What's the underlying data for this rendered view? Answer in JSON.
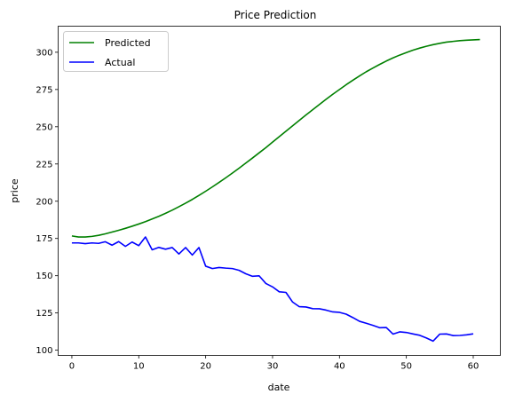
{
  "chart_data": {
    "type": "line",
    "title": "Price Prediction",
    "xlabel": "date",
    "ylabel": "price",
    "xlim": [
      -2.05,
      64.05
    ],
    "ylim": [
      96.5,
      317.5
    ],
    "xticks": [
      0,
      10,
      20,
      30,
      40,
      50,
      60
    ],
    "yticks": [
      100,
      125,
      150,
      175,
      200,
      225,
      250,
      275,
      300
    ],
    "grid": false,
    "legend_position": "top-left",
    "series": [
      {
        "name": "Predicted",
        "color": "#008000",
        "x": [
          0,
          1,
          2,
          3,
          4,
          5,
          6,
          7,
          8,
          9,
          10,
          11,
          12,
          13,
          14,
          15,
          16,
          17,
          18,
          19,
          20,
          21,
          22,
          23,
          24,
          25,
          26,
          27,
          28,
          29,
          30,
          31,
          32,
          33,
          34,
          35,
          36,
          37,
          38,
          39,
          40,
          41,
          42,
          43,
          44,
          45,
          46,
          47,
          48,
          49,
          50,
          51,
          52,
          53,
          54,
          55,
          56,
          57,
          58,
          59,
          60,
          61
        ],
        "values": [
          176.7,
          176.0,
          176.0,
          176.4,
          177.1,
          178.1,
          179.3,
          180.5,
          181.8,
          183.2,
          184.7,
          186.3,
          188.1,
          189.9,
          191.9,
          194.0,
          196.3,
          198.7,
          201.2,
          203.9,
          206.7,
          209.6,
          212.6,
          215.7,
          218.9,
          222.2,
          225.6,
          229.0,
          232.5,
          236.0,
          239.7,
          243.3,
          247.0,
          250.6,
          254.3,
          257.9,
          261.4,
          264.9,
          268.4,
          271.8,
          275.0,
          278.2,
          281.2,
          284.1,
          286.9,
          289.4,
          291.8,
          294.1,
          296.2,
          298.1,
          299.8,
          301.4,
          302.8,
          304.0,
          305.1,
          306.0,
          306.8,
          307.3,
          307.8,
          308.1,
          308.3,
          308.5
        ]
      },
      {
        "name": "Actual",
        "color": "#0000ff",
        "x": [
          0,
          1,
          2,
          3,
          4,
          5,
          6,
          7,
          8,
          9,
          10,
          11,
          12,
          13,
          14,
          15,
          16,
          17,
          18,
          19,
          20,
          21,
          22,
          23,
          24,
          25,
          26,
          27,
          28,
          29,
          30,
          31,
          32,
          33,
          34,
          35,
          36,
          37,
          38,
          39,
          40,
          41,
          42,
          43,
          44,
          45,
          46,
          47,
          48,
          49,
          50,
          51,
          52,
          53,
          54,
          55,
          56,
          57,
          58,
          59,
          60
        ],
        "values": [
          172.0,
          172.0,
          171.5,
          172.0,
          171.7,
          172.8,
          170.5,
          172.9,
          169.7,
          172.6,
          170.2,
          176.0,
          167.4,
          169.0,
          167.8,
          168.9,
          164.6,
          168.9,
          163.9,
          168.9,
          156.4,
          154.8,
          155.5,
          155.1,
          154.8,
          153.6,
          151.3,
          149.6,
          149.9,
          144.8,
          142.5,
          139.2,
          138.8,
          132.3,
          129.2,
          129.0,
          127.9,
          127.8,
          126.9,
          125.7,
          125.4,
          124.2,
          121.9,
          119.4,
          118.1,
          116.7,
          115.1,
          115.2,
          110.8,
          112.3,
          111.9,
          110.9,
          110.0,
          108.2,
          106.1,
          110.8,
          110.9,
          109.8,
          109.9,
          110.3,
          111.0
        ]
      }
    ]
  }
}
